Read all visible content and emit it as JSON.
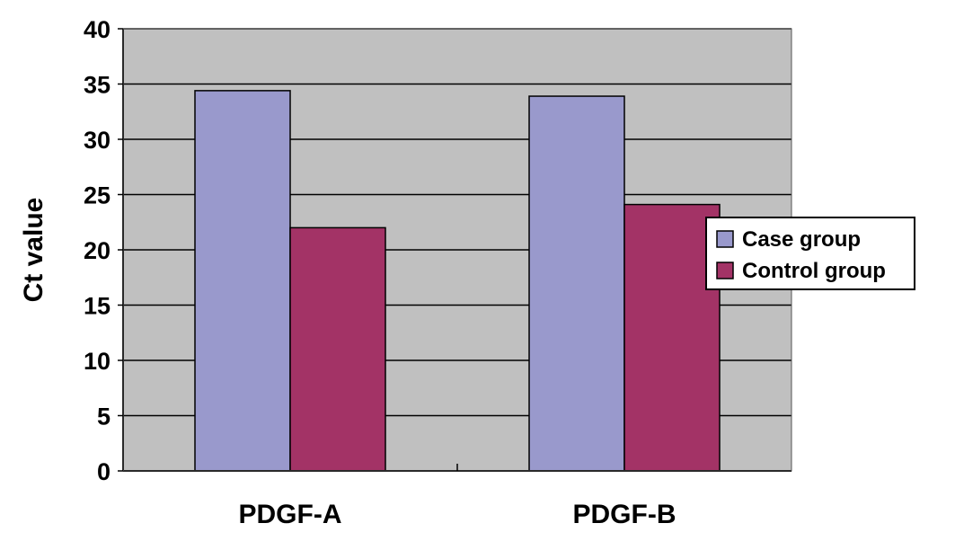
{
  "chart_data": {
    "type": "bar",
    "categories": [
      "PDGF-A",
      "PDGF-B"
    ],
    "series": [
      {
        "name": "Case group",
        "values": [
          34.4,
          33.9
        ],
        "color": "#9999cc"
      },
      {
        "name": "Control group",
        "values": [
          22.0,
          24.1
        ],
        "color": "#a33366"
      }
    ],
    "xlabel": "",
    "ylabel": "Ct value",
    "ylim": [
      0,
      40
    ],
    "yticks": [
      0,
      5,
      10,
      15,
      20,
      25,
      30,
      35,
      40
    ],
    "grid": true,
    "plot_background": "#c0c0c0",
    "legend_position": "right"
  }
}
